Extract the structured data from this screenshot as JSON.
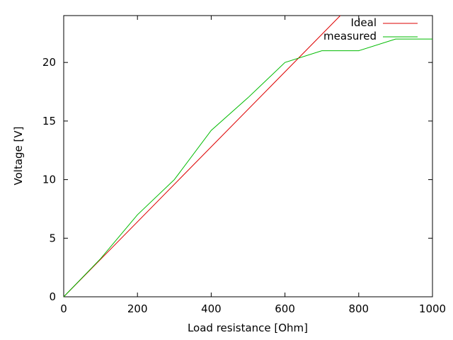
{
  "chart_data": {
    "type": "line",
    "title": "",
    "xlabel": "Load resistance [Ohm]",
    "ylabel": "Voltage [V]",
    "xlim": [
      0,
      1000
    ],
    "ylim": [
      0,
      24
    ],
    "xticks": [
      0,
      200,
      400,
      600,
      800,
      1000
    ],
    "yticks": [
      0,
      5,
      10,
      15,
      20
    ],
    "grid": false,
    "legend_position": "top-right-inside",
    "series": [
      {
        "name": "Ideal",
        "color": "#dd0000",
        "points": [
          [
            0,
            0
          ],
          [
            750,
            24
          ]
        ]
      },
      {
        "name": "measured",
        "color": "#00bb00",
        "points": [
          [
            0,
            0
          ],
          [
            100,
            3.25
          ],
          [
            200,
            7
          ],
          [
            300,
            10
          ],
          [
            400,
            14.2
          ],
          [
            500,
            17
          ],
          [
            600,
            20
          ],
          [
            700,
            21
          ],
          [
            800,
            21
          ],
          [
            900,
            22
          ],
          [
            1000,
            22
          ]
        ]
      }
    ]
  },
  "colors": {
    "axis": "#000000",
    "background": "#ffffff",
    "ideal_line": "#dd0000",
    "measured_line": "#00bb00"
  }
}
